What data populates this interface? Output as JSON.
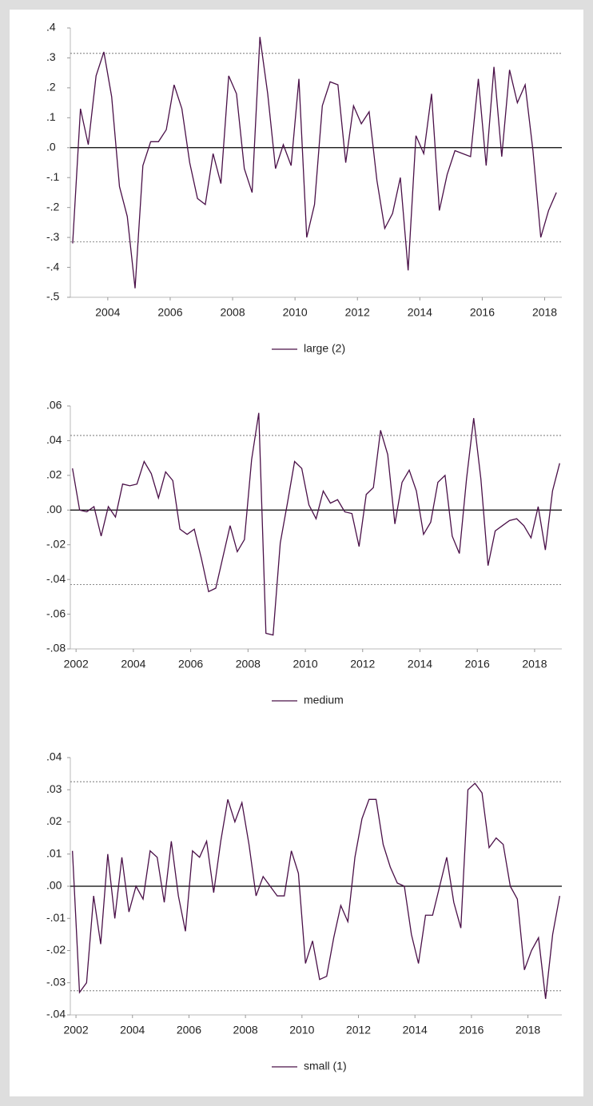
{
  "chart_data": [
    {
      "type": "line",
      "x": [
        2002.875,
        2003.125,
        2003.375,
        2003.625,
        2003.875,
        2004.125,
        2004.375,
        2004.625,
        2004.875,
        2005.125,
        2005.375,
        2005.625,
        2005.875,
        2006.125,
        2006.375,
        2006.625,
        2006.875,
        2007.125,
        2007.375,
        2007.625,
        2007.875,
        2008.125,
        2008.375,
        2008.625,
        2008.875,
        2009.125,
        2009.375,
        2009.625,
        2009.875,
        2010.125,
        2010.375,
        2010.625,
        2010.875,
        2011.125,
        2011.375,
        2011.625,
        2011.875,
        2012.125,
        2012.375,
        2012.625,
        2012.875,
        2013.125,
        2013.375,
        2013.625,
        2013.875,
        2014.125,
        2014.375,
        2014.625,
        2014.875,
        2015.125,
        2015.375,
        2015.625,
        2015.875,
        2016.125,
        2016.375,
        2016.625,
        2016.875,
        2017.125,
        2017.375,
        2017.625,
        2017.875,
        2018.125,
        2018.375
      ],
      "series": [
        {
          "name": "large (2)",
          "color": "#4a1048",
          "values": [
            -0.32,
            0.13,
            0.01,
            0.24,
            0.32,
            0.17,
            -0.13,
            -0.23,
            -0.47,
            -0.06,
            0.02,
            0.02,
            0.06,
            0.21,
            0.13,
            -0.05,
            -0.17,
            -0.19,
            -0.02,
            -0.12,
            0.24,
            0.18,
            -0.07,
            -0.15,
            0.37,
            0.18,
            -0.07,
            0.01,
            -0.06,
            0.23,
            -0.3,
            -0.19,
            0.14,
            0.22,
            0.21,
            -0.05,
            0.14,
            0.08,
            0.12,
            -0.11,
            -0.27,
            -0.22,
            -0.1,
            -0.41,
            0.04,
            -0.02,
            0.18,
            -0.21,
            -0.09,
            -0.01,
            -0.02,
            -0.03,
            0.23,
            -0.06,
            0.27,
            -0.03,
            0.26,
            0.15,
            0.21,
            -0.01,
            -0.3,
            -0.21,
            -0.15
          ]
        }
      ],
      "xlim": [
        2002.8,
        2018.55
      ],
      "xticks": [
        2004,
        2006,
        2008,
        2010,
        2012,
        2014,
        2016,
        2018
      ],
      "ylim": [
        -0.5,
        0.4
      ],
      "yticks": [
        {
          "value": 0.4,
          "label": ".4"
        },
        {
          "value": 0.3,
          "label": ".3"
        },
        {
          "value": 0.2,
          "label": ".2"
        },
        {
          "value": 0.1,
          "label": ".1"
        },
        {
          "value": 0,
          "label": ".0"
        },
        {
          "value": -0.1,
          "label": "-.1"
        },
        {
          "value": -0.2,
          "label": "-.2"
        },
        {
          "value": -0.3,
          "label": "-.3"
        },
        {
          "value": -0.4,
          "label": "-.4"
        },
        {
          "value": -0.5,
          "label": "-.5"
        }
      ],
      "reference_lines": [
        0.315,
        -0.315
      ],
      "zero_line": true
    },
    {
      "type": "line",
      "x": [
        2001.875,
        2002.125,
        2002.375,
        2002.625,
        2002.875,
        2003.125,
        2003.375,
        2003.625,
        2003.875,
        2004.125,
        2004.375,
        2004.625,
        2004.875,
        2005.125,
        2005.375,
        2005.625,
        2005.875,
        2006.125,
        2006.375,
        2006.625,
        2006.875,
        2007.125,
        2007.375,
        2007.625,
        2007.875,
        2008.125,
        2008.375,
        2008.625,
        2008.875,
        2009.125,
        2009.375,
        2009.625,
        2009.875,
        2010.125,
        2010.375,
        2010.625,
        2010.875,
        2011.125,
        2011.375,
        2011.625,
        2011.875,
        2012.125,
        2012.375,
        2012.625,
        2012.875,
        2013.125,
        2013.375,
        2013.625,
        2013.875,
        2014.125,
        2014.375,
        2014.625,
        2014.875,
        2015.125,
        2015.375,
        2015.625,
        2015.875,
        2016.125,
        2016.375,
        2016.625,
        2016.875,
        2017.125,
        2017.375,
        2017.625,
        2017.875,
        2018.125,
        2018.375,
        2018.625,
        2018.875
      ],
      "series": [
        {
          "name": "medium",
          "color": "#4a1048",
          "values": [
            0.024,
            0.0,
            -0.001,
            0.002,
            -0.015,
            0.002,
            -0.004,
            0.015,
            0.014,
            0.015,
            0.028,
            0.021,
            0.007,
            0.022,
            0.017,
            -0.011,
            -0.014,
            -0.011,
            -0.028,
            -0.047,
            -0.045,
            -0.027,
            -0.009,
            -0.024,
            -0.017,
            0.029,
            0.056,
            -0.071,
            -0.072,
            -0.019,
            0.004,
            0.028,
            0.024,
            0.003,
            -0.005,
            0.011,
            0.004,
            0.006,
            -0.001,
            -0.002,
            -0.021,
            0.009,
            0.013,
            0.046,
            0.032,
            -0.008,
            0.016,
            0.023,
            0.011,
            -0.014,
            -0.007,
            0.016,
            0.02,
            -0.015,
            -0.025,
            0.018,
            0.053,
            0.018,
            -0.032,
            -0.012,
            -0.009,
            -0.006,
            -0.005,
            -0.009,
            -0.016,
            0.002,
            -0.023,
            0.011,
            0.027
          ]
        }
      ],
      "xlim": [
        2001.8,
        2018.95
      ],
      "xticks": [
        2002,
        2004,
        2006,
        2008,
        2010,
        2012,
        2014,
        2016,
        2018
      ],
      "ylim": [
        -0.08,
        0.06
      ],
      "yticks": [
        {
          "value": 0.06,
          "label": ".06"
        },
        {
          "value": 0.04,
          "label": ".04"
        },
        {
          "value": 0.02,
          "label": ".02"
        },
        {
          "value": 0,
          "label": ".00"
        },
        {
          "value": -0.02,
          "label": "-.02"
        },
        {
          "value": -0.04,
          "label": "-.04"
        },
        {
          "value": -0.06,
          "label": "-.06"
        },
        {
          "value": -0.08,
          "label": "-.08"
        }
      ],
      "reference_lines": [
        0.043,
        -0.043
      ],
      "zero_line": true
    },
    {
      "type": "line",
      "x": [
        2001.875,
        2002.125,
        2002.375,
        2002.625,
        2002.875,
        2003.125,
        2003.375,
        2003.625,
        2003.875,
        2004.125,
        2004.375,
        2004.625,
        2004.875,
        2005.125,
        2005.375,
        2005.625,
        2005.875,
        2006.125,
        2006.375,
        2006.625,
        2006.875,
        2007.125,
        2007.375,
        2007.625,
        2007.875,
        2008.125,
        2008.375,
        2008.625,
        2008.875,
        2009.125,
        2009.375,
        2009.625,
        2009.875,
        2010.125,
        2010.375,
        2010.625,
        2010.875,
        2011.125,
        2011.375,
        2011.625,
        2011.875,
        2012.125,
        2012.375,
        2012.625,
        2012.875,
        2013.125,
        2013.375,
        2013.625,
        2013.875,
        2014.125,
        2014.375,
        2014.625,
        2014.875,
        2015.125,
        2015.375,
        2015.625,
        2015.875,
        2016.125,
        2016.375,
        2016.625,
        2016.875,
        2017.125,
        2017.375,
        2017.625,
        2017.875,
        2018.125,
        2018.375,
        2018.625,
        2018.875,
        2019.125
      ],
      "series": [
        {
          "name": "small (1)",
          "color": "#4a1048",
          "values": [
            0.011,
            -0.033,
            -0.03,
            -0.003,
            -0.018,
            0.01,
            -0.01,
            0.009,
            -0.008,
            0.0,
            -0.004,
            0.011,
            0.009,
            -0.005,
            0.014,
            -0.003,
            -0.014,
            0.011,
            0.009,
            0.014,
            -0.002,
            0.014,
            0.027,
            0.02,
            0.026,
            0.013,
            -0.003,
            0.003,
            0.0,
            -0.003,
            -0.003,
            0.011,
            0.004,
            -0.024,
            -0.017,
            -0.029,
            -0.028,
            -0.016,
            -0.006,
            -0.011,
            0.009,
            0.021,
            0.027,
            0.027,
            0.013,
            0.006,
            0.001,
            0.0,
            -0.015,
            -0.024,
            -0.009,
            -0.009,
            0.0,
            0.009,
            -0.005,
            -0.013,
            0.03,
            0.032,
            0.029,
            0.012,
            0.015,
            0.013,
            0.0,
            -0.004,
            -0.026,
            -0.02,
            -0.016,
            -0.035,
            -0.015,
            -0.003
          ]
        }
      ],
      "xlim": [
        2001.8,
        2019.2
      ],
      "xticks": [
        2002,
        2004,
        2006,
        2008,
        2010,
        2012,
        2014,
        2016,
        2018
      ],
      "ylim": [
        -0.04,
        0.04
      ],
      "yticks": [
        {
          "value": 0.04,
          "label": ".04"
        },
        {
          "value": 0.03,
          "label": ".03"
        },
        {
          "value": 0.02,
          "label": ".02"
        },
        {
          "value": 0.01,
          "label": ".01"
        },
        {
          "value": 0,
          "label": ".00"
        },
        {
          "value": -0.01,
          "label": "-.01"
        },
        {
          "value": -0.02,
          "label": "-.02"
        },
        {
          "value": -0.03,
          "label": "-.03"
        },
        {
          "value": -0.04,
          "label": "-.04"
        }
      ],
      "reference_lines": [
        0.0325,
        -0.0325
      ],
      "zero_line": true
    }
  ]
}
